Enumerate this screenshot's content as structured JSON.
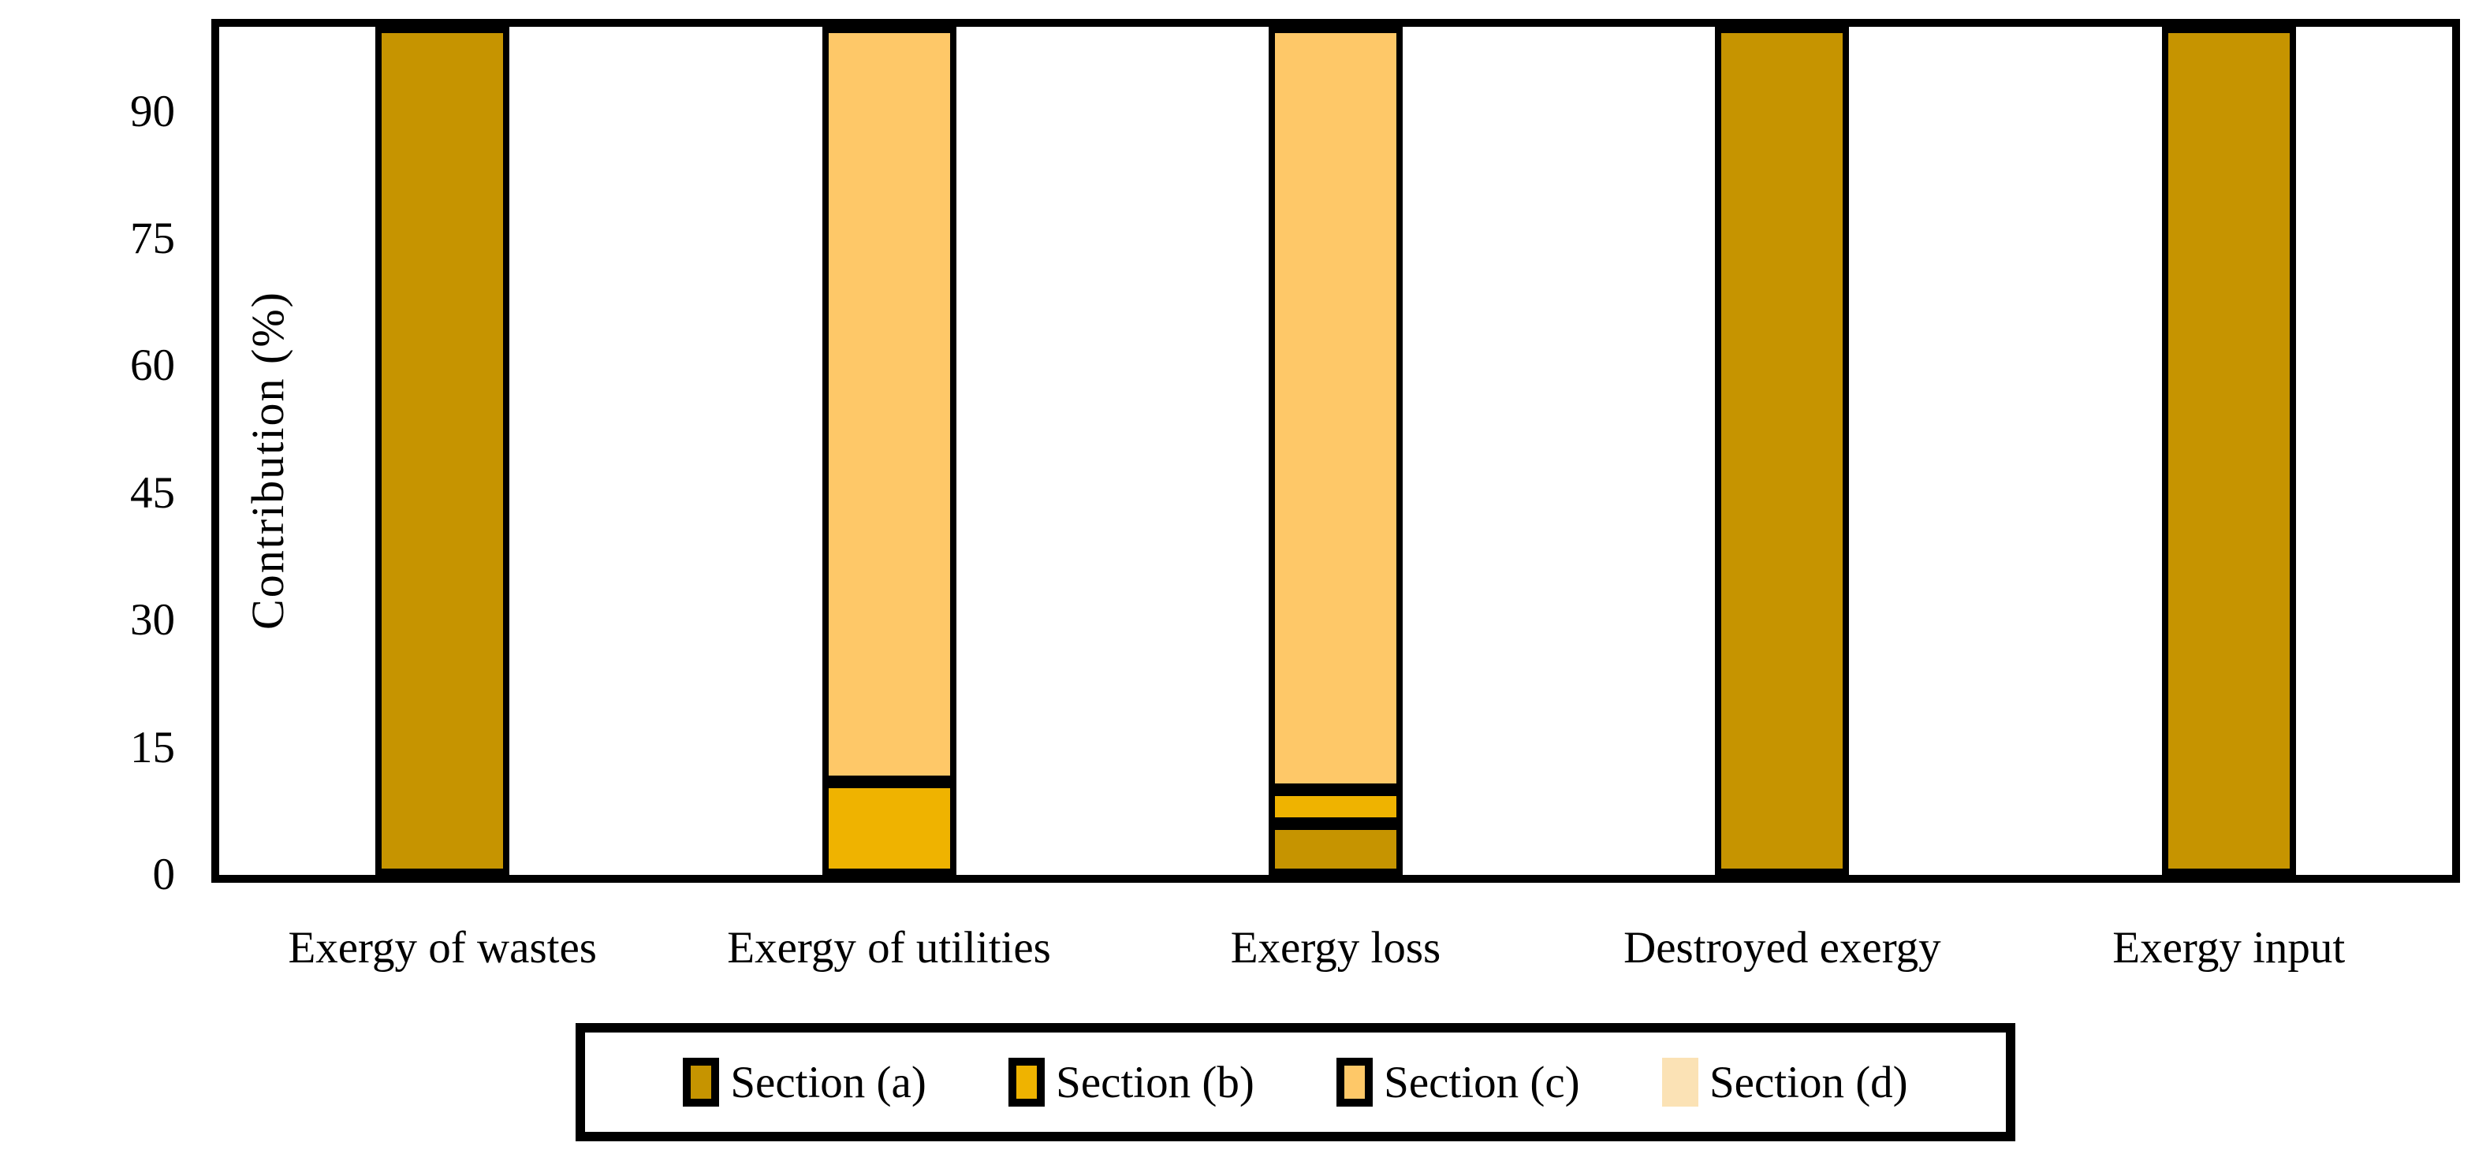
{
  "chart_data": {
    "type": "bar",
    "stacked": true,
    "title": "",
    "xlabel": "",
    "ylabel": "Contribution (%)",
    "ylim": [
      0,
      100
    ],
    "yticks": [
      0,
      15,
      30,
      45,
      60,
      75,
      90
    ],
    "grid": false,
    "legend_position": "bottom",
    "categories": [
      "Exergy of wastes",
      "Exergy of utilities",
      "Exergy loss",
      "Destroyed exergy",
      "Exergy input"
    ],
    "series": [
      {
        "name": "Section (a)",
        "color": "#C69400",
        "bordered": true,
        "values": [
          100,
          0,
          6,
          100,
          100
        ]
      },
      {
        "name": "Section (b)",
        "color": "#EFB300",
        "bordered": true,
        "values": [
          0,
          11,
          4,
          0,
          0
        ]
      },
      {
        "name": "Section (c)",
        "color": "#FEC868",
        "bordered": true,
        "values": [
          0,
          89,
          90,
          0,
          0
        ]
      },
      {
        "name": "Section (d)",
        "color": "#FBE2B5",
        "bordered": false,
        "values": [
          0,
          0,
          0,
          0,
          0
        ]
      }
    ],
    "colors": {
      "axis_and_borders": "#000000",
      "background": "#ffffff"
    }
  }
}
